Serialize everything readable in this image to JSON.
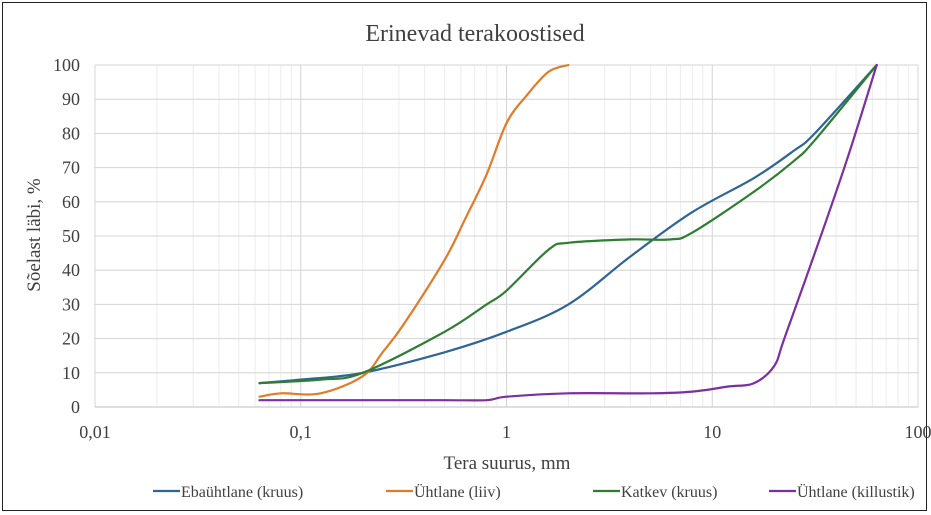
{
  "chart_data": {
    "type": "line",
    "title": "Erinevad terakoostised",
    "xlabel": "Tera suurus, mm",
    "ylabel": "Sõelast läbi, %",
    "x_scale": "log",
    "xlim": [
      0.01,
      100
    ],
    "ylim": [
      0,
      100
    ],
    "x_ticks": [
      0.01,
      0.1,
      1,
      10,
      100
    ],
    "x_tick_labels": [
      "0,01",
      "0,1",
      "1",
      "10",
      "100"
    ],
    "y_ticks": [
      0,
      10,
      20,
      30,
      40,
      50,
      60,
      70,
      80,
      90,
      100
    ],
    "y_tick_labels": [
      "0",
      "10",
      "20",
      "30",
      "40",
      "50",
      "60",
      "70",
      "80",
      "90",
      "100"
    ],
    "grid": true,
    "legend_position": "bottom",
    "series": [
      {
        "name": "Ebaühtlane (kruus)",
        "color": "#2e6595",
        "points": [
          [
            0.063,
            7
          ],
          [
            0.1,
            8
          ],
          [
            0.2,
            10
          ],
          [
            0.5,
            16
          ],
          [
            1,
            22
          ],
          [
            2,
            30
          ],
          [
            4,
            44
          ],
          [
            8,
            57
          ],
          [
            16,
            67
          ],
          [
            25,
            75
          ],
          [
            31.5,
            80
          ],
          [
            63,
            100
          ]
        ]
      },
      {
        "name": "Ühtlane (liiv)",
        "color": "#e07b2a",
        "points": [
          [
            0.063,
            3
          ],
          [
            0.08,
            4
          ],
          [
            0.125,
            4
          ],
          [
            0.2,
            9
          ],
          [
            0.25,
            16
          ],
          [
            0.315,
            24
          ],
          [
            0.5,
            43
          ],
          [
            0.63,
            55
          ],
          [
            0.8,
            68
          ],
          [
            1,
            83
          ],
          [
            1.25,
            91
          ],
          [
            1.6,
            98
          ],
          [
            2,
            100
          ]
        ]
      },
      {
        "name": "Katkev (kruus)",
        "color": "#2e7d32",
        "points": [
          [
            0.063,
            7
          ],
          [
            0.125,
            8
          ],
          [
            0.2,
            10
          ],
          [
            0.5,
            22
          ],
          [
            0.8,
            30
          ],
          [
            1,
            34
          ],
          [
            1.6,
            46
          ],
          [
            2,
            48
          ],
          [
            4,
            49
          ],
          [
            6.3,
            49
          ],
          [
            8,
            51
          ],
          [
            16,
            63
          ],
          [
            25,
            72
          ],
          [
            31.5,
            78
          ],
          [
            63,
            100
          ]
        ]
      },
      {
        "name": "Ühtlane (killustik)",
        "color": "#7b2fa0",
        "points": [
          [
            0.063,
            2
          ],
          [
            0.2,
            2
          ],
          [
            0.5,
            2
          ],
          [
            0.8,
            2
          ],
          [
            1,
            3
          ],
          [
            2,
            4
          ],
          [
            5,
            4
          ],
          [
            8,
            4.5
          ],
          [
            12,
            6
          ],
          [
            16,
            7
          ],
          [
            20,
            12
          ],
          [
            22.4,
            20
          ],
          [
            31.5,
            45
          ],
          [
            45,
            72
          ],
          [
            63,
            100
          ]
        ]
      }
    ]
  }
}
